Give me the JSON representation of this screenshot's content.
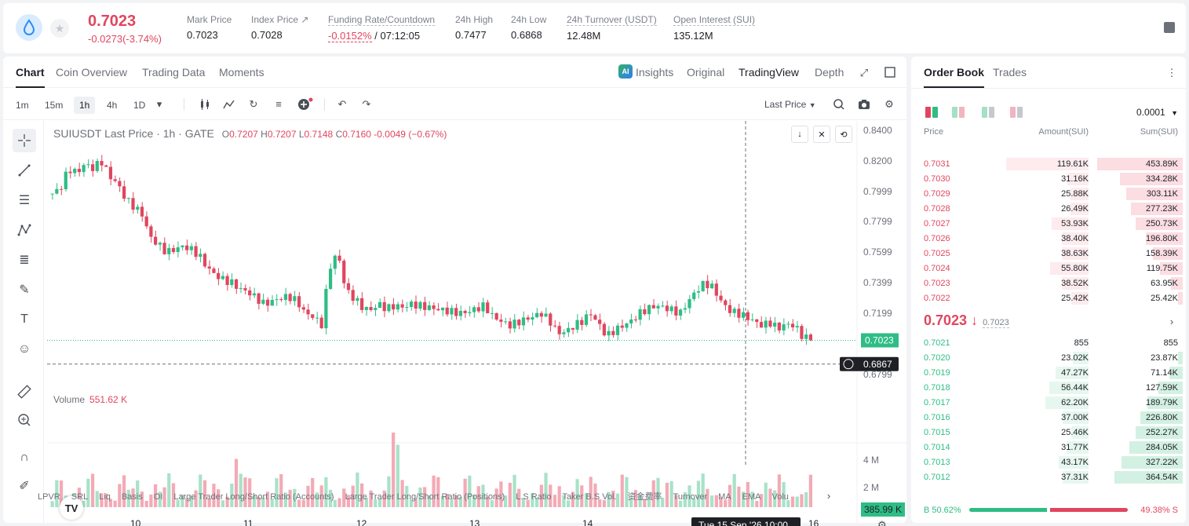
{
  "ticker": {
    "last_price": "0.7023",
    "change": "-0.0273(-3.74%)",
    "stats": [
      {
        "label": "Mark Price",
        "value": "0.7023"
      },
      {
        "label": "Index Price ↗",
        "value": "0.7028"
      },
      {
        "label": "Funding Rate/Countdown",
        "value_red": "-0.0152%",
        "value": " / 07:12:05"
      },
      {
        "label": "24h High",
        "value": "0.7477"
      },
      {
        "label": "24h Low",
        "value": "0.6868"
      },
      {
        "label": "24h Turnover (USDT)",
        "value": "12.48M"
      },
      {
        "label": "Open Interest (SUI)",
        "value": "135.12M"
      }
    ]
  },
  "chart_tabs": [
    "Chart",
    "Coin Overview",
    "Trading Data",
    "Moments"
  ],
  "view_tabs": [
    "Insights",
    "Original",
    "TradingView",
    "Depth"
  ],
  "ai_badge": "AI",
  "timeframes": [
    "1m",
    "15m",
    "1h",
    "4h",
    "1D"
  ],
  "active_timeframe": "1h",
  "price_type": "Last Price",
  "legend": {
    "title": "SUIUSDT Last Price · 1h · GATE",
    "o": "0.7207",
    "h": "0.7207",
    "l": "0.7148",
    "c": "0.7160",
    "chg": "-0.0049 (−0.67%)"
  },
  "volume_legend": {
    "label": "Volume",
    "value": "551.62 K"
  },
  "price_axis": [
    "0.8400",
    "0.8200",
    "0.7999",
    "0.7799",
    "0.7599",
    "0.7399",
    "0.7199",
    "0.6799"
  ],
  "current_price_label": "0.7023",
  "crosshair_price_label": "0.6867",
  "volume_axis": [
    "4 M",
    "2 M"
  ],
  "volume_current_label": "385.99 K",
  "date_axis": [
    "10",
    "11",
    "12",
    "13",
    "14",
    "16"
  ],
  "crosshair_date": "Tue 15 Sep '26   10:00",
  "tv_logo": "TV",
  "indicators": [
    "LPVR",
    "SRL",
    "Liq",
    "Basis",
    "OI",
    "Large Trader Long/Short Ratio (Accounts)",
    "Large Trader Long/Short Ratio (Positions)",
    "L.S Ratio",
    "Taker B.S Vol.",
    "资金费率",
    "Turnover",
    "MA",
    "EMA",
    "Volu"
  ],
  "orderbook": {
    "tabs": [
      "Order Book",
      "Trades"
    ],
    "precision": "0.0001",
    "headers": {
      "price": "Price",
      "amount": "Amount(SUI)",
      "sum": "Sum(SUI)"
    },
    "asks": [
      {
        "price": "0.7031",
        "amount": "119.61K",
        "sum": "453.89K"
      },
      {
        "price": "0.7030",
        "amount": "31.16K",
        "sum": "334.28K"
      },
      {
        "price": "0.7029",
        "amount": "25.88K",
        "sum": "303.11K"
      },
      {
        "price": "0.7028",
        "amount": "26.49K",
        "sum": "277.23K"
      },
      {
        "price": "0.7027",
        "amount": "53.93K",
        "sum": "250.73K"
      },
      {
        "price": "0.7026",
        "amount": "38.40K",
        "sum": "196.80K"
      },
      {
        "price": "0.7025",
        "amount": "38.63K",
        "sum": "158.39K"
      },
      {
        "price": "0.7024",
        "amount": "55.80K",
        "sum": "119.75K"
      },
      {
        "price": "0.7023",
        "amount": "38.52K",
        "sum": "63.95K"
      },
      {
        "price": "0.7022",
        "amount": "25.42K",
        "sum": "25.42K"
      }
    ],
    "mid_price": "0.7023 ↓",
    "mid_mark": "0.7023",
    "bids": [
      {
        "price": "0.7021",
        "amount": "855",
        "sum": "855"
      },
      {
        "price": "0.7020",
        "amount": "23.02K",
        "sum": "23.87K"
      },
      {
        "price": "0.7019",
        "amount": "47.27K",
        "sum": "71.14K"
      },
      {
        "price": "0.7018",
        "amount": "56.44K",
        "sum": "127.59K"
      },
      {
        "price": "0.7017",
        "amount": "62.20K",
        "sum": "189.79K"
      },
      {
        "price": "0.7016",
        "amount": "37.00K",
        "sum": "226.80K"
      },
      {
        "price": "0.7015",
        "amount": "25.46K",
        "sum": "252.27K"
      },
      {
        "price": "0.7014",
        "amount": "31.77K",
        "sum": "284.05K"
      },
      {
        "price": "0.7013",
        "amount": "43.17K",
        "sum": "327.22K"
      },
      {
        "price": "0.7012",
        "amount": "37.31K",
        "sum": "364.54K"
      }
    ],
    "buy_label": "B 50.62%",
    "sell_label": "49.38% S",
    "buy_ratio": 0.5062
  },
  "colors": {
    "up": "#2ebd85",
    "down": "#e0465e"
  }
}
